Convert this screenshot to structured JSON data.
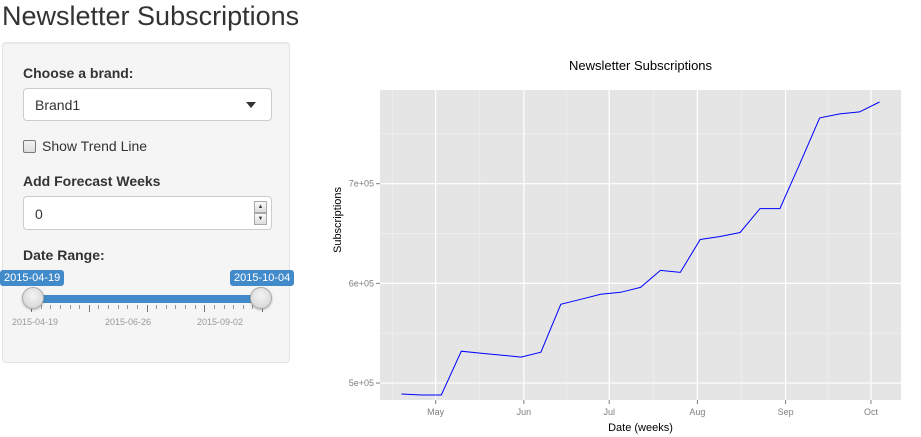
{
  "page": {
    "title": "Newsletter Subscriptions"
  },
  "sidebar": {
    "brand_label": "Choose a brand:",
    "brand_selected": "Brand1",
    "trend_label": "Show Trend Line",
    "trend_checked": false,
    "forecast_label": "Add Forecast Weeks",
    "forecast_value": "0",
    "range_label": "Date Range:",
    "range_start": "2015-04-19",
    "range_end": "2015-10-04",
    "grid_labels": [
      "2015-04-19",
      "2015-06-26",
      "2015-09-02"
    ]
  },
  "chart_data": {
    "type": "line",
    "title": "Newsletter Subscriptions",
    "xlabel": "Date (weeks)",
    "ylabel": "Subscriptions",
    "x_tick_labels": [
      "May",
      "Jun",
      "Jul",
      "Aug",
      "Sep",
      "Oct"
    ],
    "y_tick_labels": [
      "5e+05",
      "6e+05",
      "7e+05"
    ],
    "y_ticks": [
      500000,
      600000,
      700000
    ],
    "ylim": [
      483000,
      794000
    ],
    "grid": true,
    "line_color": "#0000ff",
    "background": "#e5e5e5",
    "series": [
      {
        "x": [
          "2015-04-19",
          "2015-04-26",
          "2015-05-03",
          "2015-05-10",
          "2015-05-17",
          "2015-05-24",
          "2015-05-31",
          "2015-06-07",
          "2015-06-14",
          "2015-06-21",
          "2015-06-28",
          "2015-07-05",
          "2015-07-12",
          "2015-07-19",
          "2015-07-26",
          "2015-08-02",
          "2015-08-09",
          "2015-08-16",
          "2015-08-23",
          "2015-08-30",
          "2015-09-06",
          "2015-09-13",
          "2015-09-20",
          "2015-09-27",
          "2015-10-04"
        ],
        "values": [
          489000,
          488000,
          488000,
          532000,
          530000,
          528000,
          526000,
          531000,
          579000,
          584000,
          589000,
          591000,
          596000,
          613000,
          611000,
          644000,
          647000,
          651000,
          675000,
          675000,
          720000,
          766000,
          770000,
          772000,
          782000
        ]
      }
    ]
  }
}
